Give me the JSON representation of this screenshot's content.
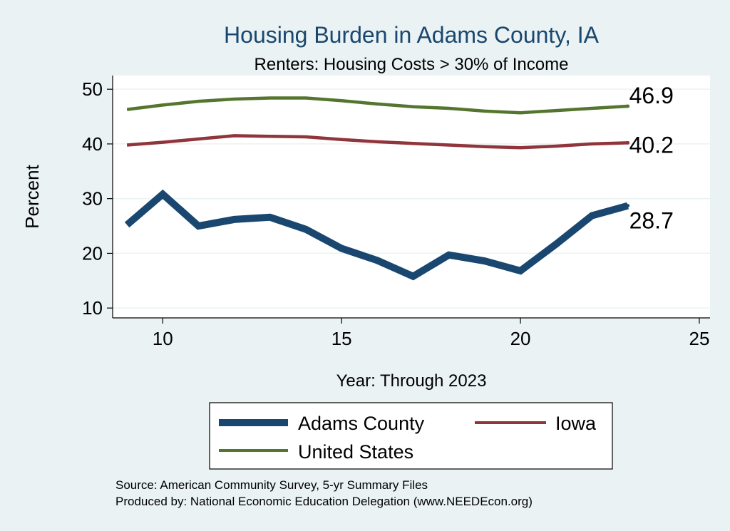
{
  "chart_data": {
    "type": "line",
    "title": "Housing Burden in Adams County, IA",
    "subtitle": "Renters: Housing Costs > 30% of Income",
    "xlabel": "Year: Through 2023",
    "ylabel": "Percent",
    "xlim": [
      8.6,
      25.3
    ],
    "ylim": [
      8.2,
      52.5
    ],
    "x_ticks": [
      10,
      15,
      20,
      25
    ],
    "y_ticks": [
      10,
      20,
      30,
      40,
      50
    ],
    "grid": true,
    "x": [
      9,
      10,
      11,
      12,
      13,
      14,
      15,
      16,
      17,
      18,
      19,
      20,
      21,
      22,
      23
    ],
    "series": [
      {
        "name": "Adams County",
        "color": "#1a476f",
        "values": [
          25.2,
          30.8,
          25.0,
          26.2,
          26.6,
          24.4,
          20.9,
          18.7,
          15.8,
          19.7,
          18.6,
          16.8,
          21.7,
          26.9,
          28.7
        ],
        "end_label": "28.7"
      },
      {
        "name": "Iowa",
        "color": "#90353b",
        "values": [
          39.8,
          40.3,
          40.9,
          41.5,
          41.4,
          41.3,
          40.8,
          40.4,
          40.1,
          39.8,
          39.5,
          39.3,
          39.6,
          40.0,
          40.2
        ],
        "end_label": "40.2"
      },
      {
        "name": "United States",
        "color": "#55752f",
        "values": [
          46.3,
          47.1,
          47.8,
          48.2,
          48.4,
          48.4,
          47.9,
          47.3,
          46.8,
          46.5,
          46.0,
          45.7,
          46.1,
          46.5,
          46.9
        ],
        "end_label": "46.9"
      }
    ],
    "legend": {
      "position": "bottom",
      "entries": [
        "Adams County",
        "Iowa",
        "United States"
      ]
    }
  },
  "notes": {
    "source": "Source: American Community Survey, 5-yr Summary Files",
    "produced_by": "Produced by: National Economic Education Delegation (www.NEEDEcon.org)"
  }
}
